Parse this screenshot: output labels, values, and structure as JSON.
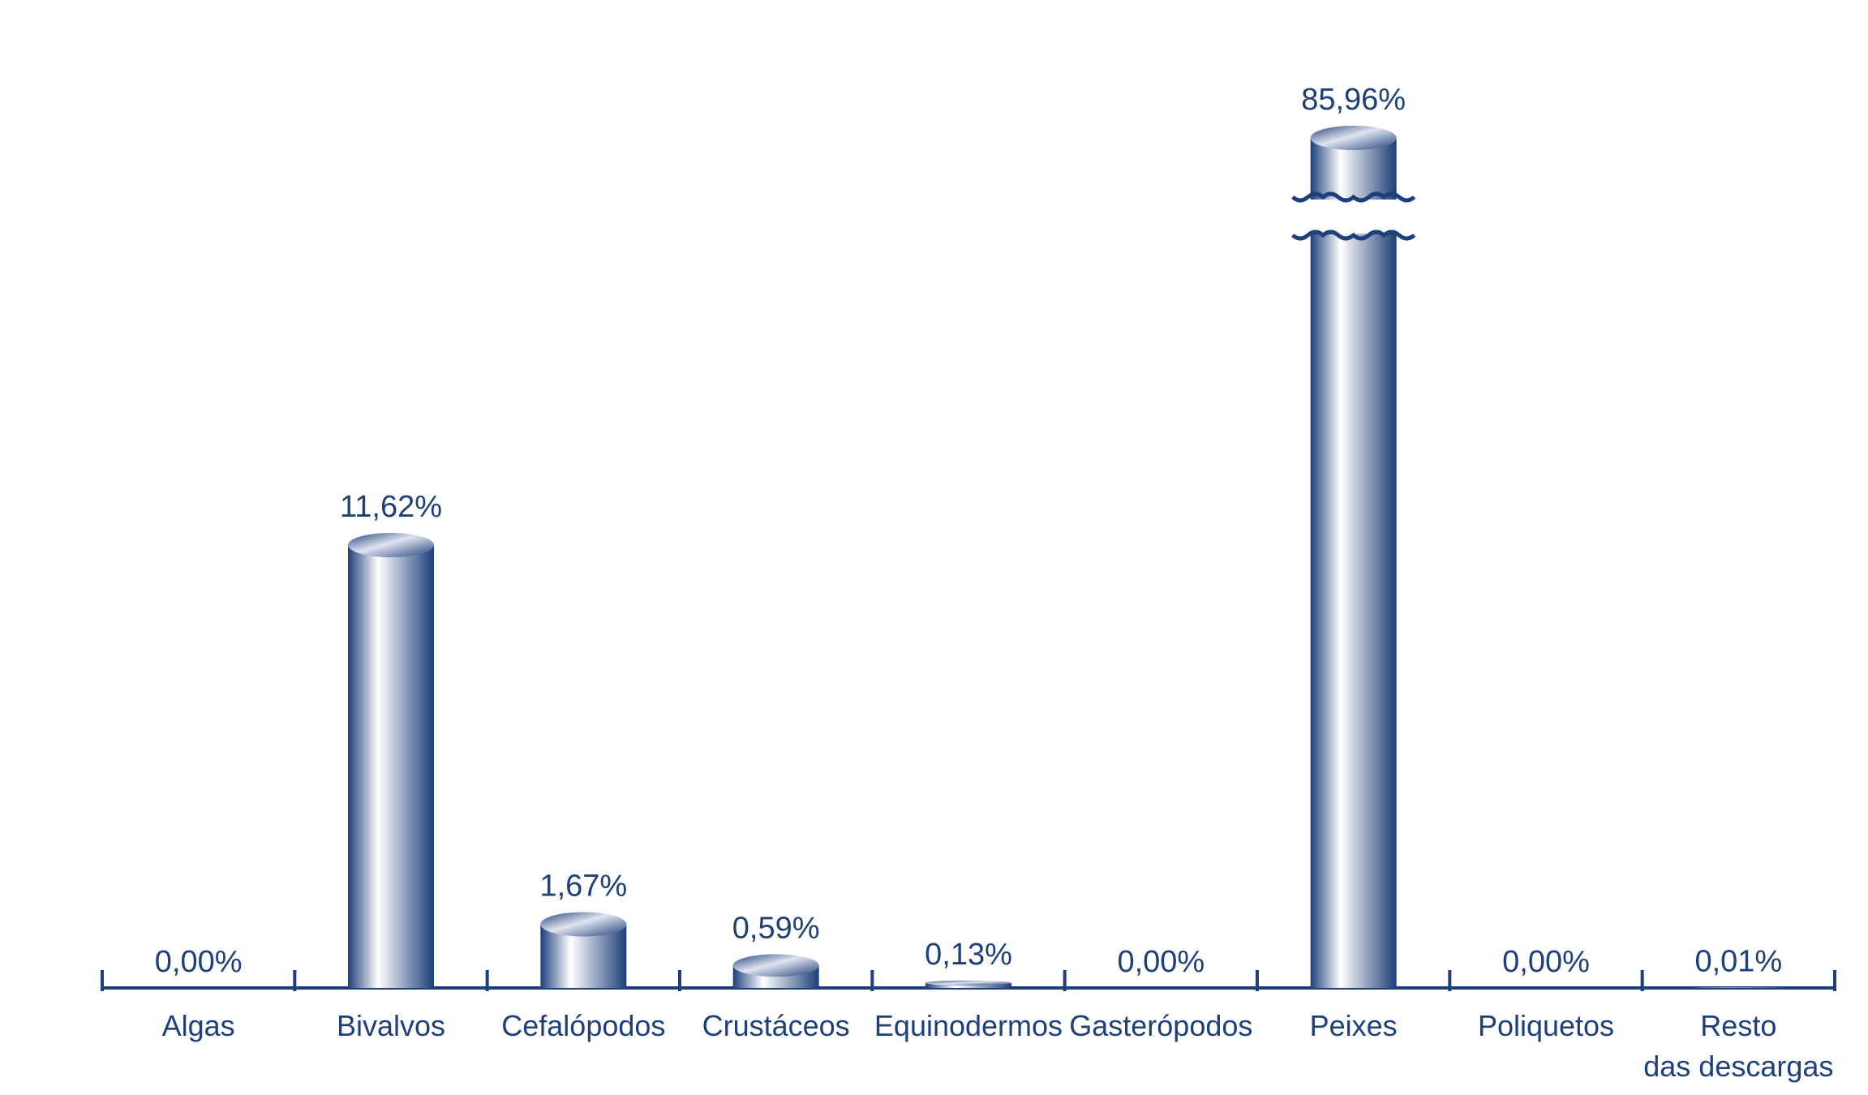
{
  "chart_data": {
    "type": "bar",
    "categories": [
      "Algas",
      "Bivalvos",
      "Cefalópodos",
      "Crustáceos",
      "Equinodermos",
      "Gasterópodos",
      "Peixes",
      "Poliquetos",
      "Resto\ndas descargas"
    ],
    "values": [
      0,
      11.62,
      1.67,
      0.59,
      0.13,
      0,
      85.96,
      0,
      0.01
    ],
    "value_labels": [
      "0,00%",
      "11,62%",
      "1,67%",
      "0,59%",
      "0,13%",
      "0,00%",
      "85,96%",
      "0,00%",
      "0,01%"
    ],
    "color": "#1d3f7a"
  }
}
